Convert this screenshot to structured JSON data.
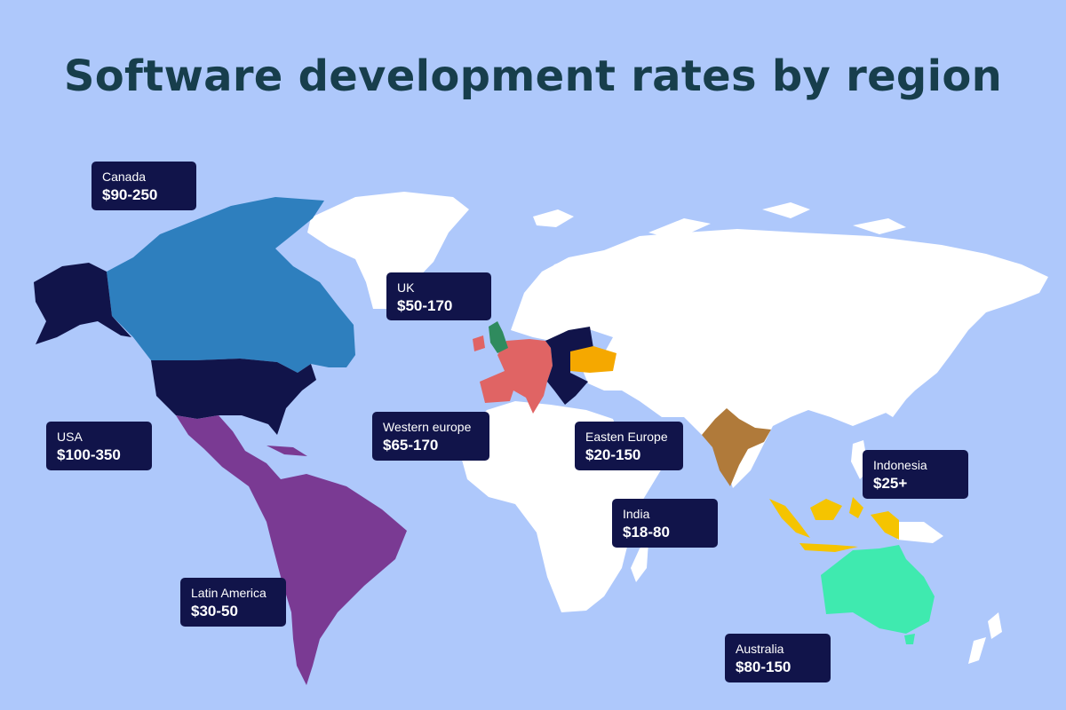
{
  "title": "Software development rates by region",
  "regions": [
    {
      "id": "canada",
      "name": "Canada",
      "rate": "$90-250",
      "color": "#2e7fbe"
    },
    {
      "id": "uk",
      "name": "UK",
      "rate": "$50-170",
      "color": "#2f8b5e"
    },
    {
      "id": "usa",
      "name": "USA",
      "rate": "$100-350",
      "color": "#11144a"
    },
    {
      "id": "western-europe",
      "name": "Western europe",
      "rate": "$65-170",
      "color": "#e06464"
    },
    {
      "id": "eastern-europe",
      "name": "Easten Europe",
      "rate": "$20-150",
      "color": "#11144a"
    },
    {
      "id": "indonesia",
      "name": "Indonesia",
      "rate": "$25+",
      "color": "#f5c400"
    },
    {
      "id": "india",
      "name": "India",
      "rate": "$18-80",
      "color": "#b07a3a"
    },
    {
      "id": "latin-america",
      "name": "Latin America",
      "rate": "$30-50",
      "color": "#7a3a93"
    },
    {
      "id": "australia",
      "name": "Australia",
      "rate": "$80-150",
      "color": "#3feaaf"
    }
  ],
  "colors": {
    "background": "#aec8fb",
    "land": "#ffffff",
    "title": "#173e4c",
    "label_bg": "#11144a",
    "ukraine": "#f5a800"
  }
}
